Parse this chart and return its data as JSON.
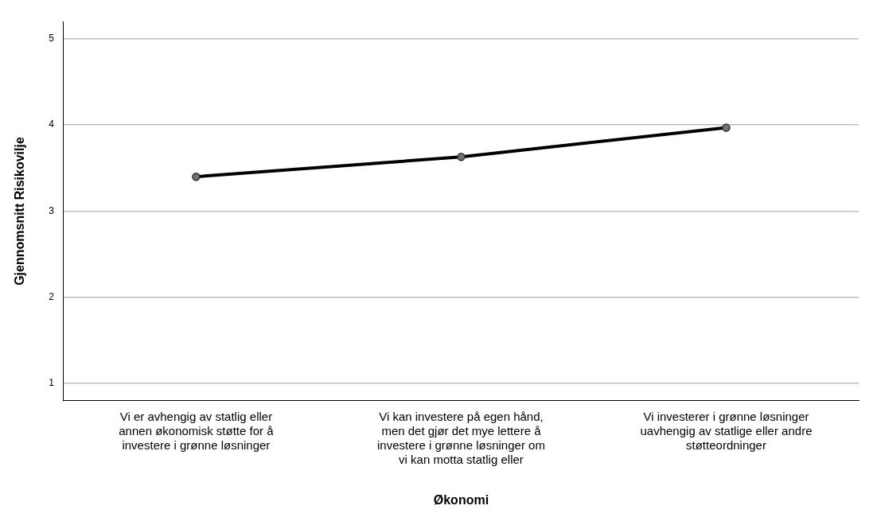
{
  "chart_data": {
    "type": "line",
    "xlabel": "Økonomi",
    "ylabel": "Gjennomsnitt Risikovilje",
    "categories": [
      "Vi er avhengig av statlig eller\nannen økonomisk støtte for å\ninvestere i grønne løsninger",
      "Vi kan investere på egen hånd,\nmen det gjør det mye lettere å\ninvestere i grønne løsninger om\nvi kan motta statlig eller",
      "Vi investerer i grønne løsninger\nuavhengig av statlige eller andre\nstøtteordninger"
    ],
    "series": [
      {
        "color": "#000000",
        "values": [
          3.4,
          3.63,
          3.97
        ]
      }
    ],
    "ylim": [
      0.8,
      5.2
    ],
    "yticks": [
      1,
      2,
      3,
      4,
      5
    ],
    "grid": "y",
    "marker": "circle",
    "line_style": "solid",
    "legend": false
  }
}
